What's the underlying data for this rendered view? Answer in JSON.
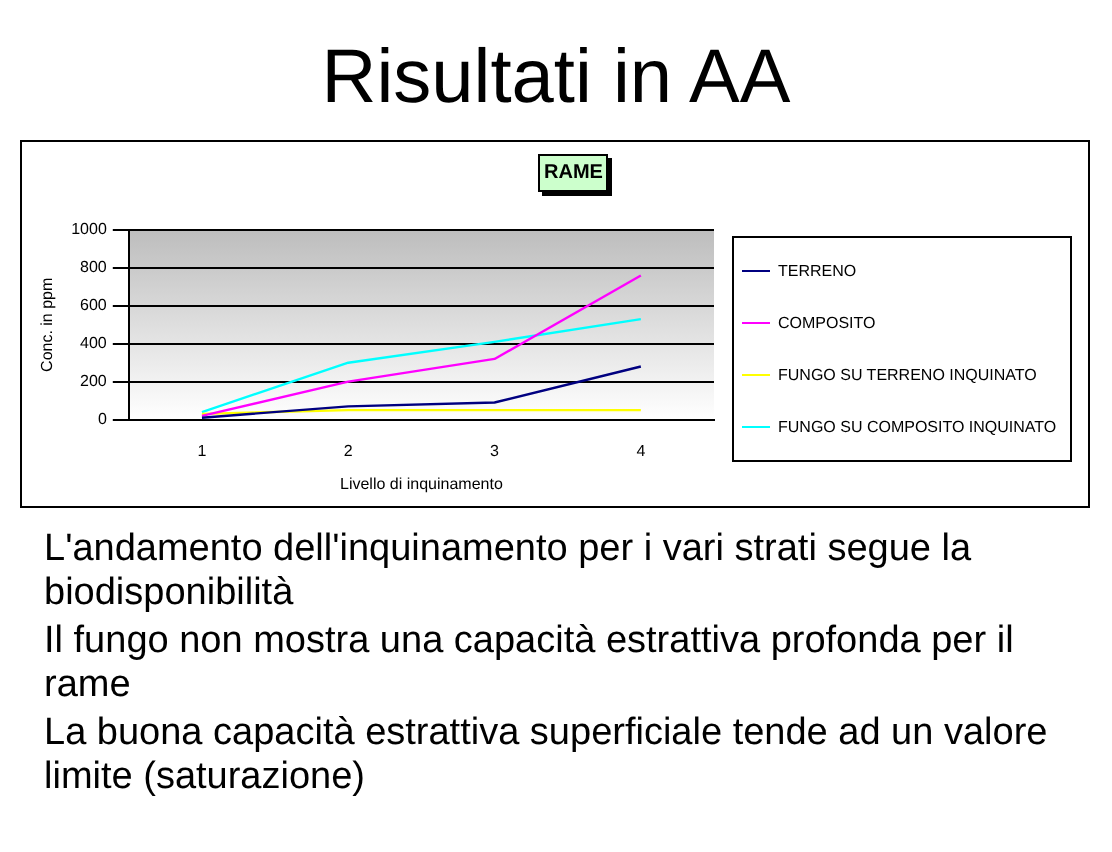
{
  "chart_data": {
    "type": "line",
    "title": "Risultati in AA",
    "subtitle": "RAME",
    "xlabel": "Livello di inquinamento",
    "ylabel": "Conc. in ppm",
    "categories": [
      "1",
      "2",
      "3",
      "4"
    ],
    "series": [
      {
        "name": "TERRENO",
        "color": "#000080",
        "values": [
          10,
          70,
          90,
          280
        ]
      },
      {
        "name": "COMPOSITO",
        "color": "#ff00ff",
        "values": [
          20,
          200,
          320,
          760
        ]
      },
      {
        "name": "FUNGO SU TERRENO INQUINATO",
        "color": "#ffff00",
        "values": [
          30,
          50,
          50,
          50
        ]
      },
      {
        "name": "FUNGO SU COMPOSITO INQUINATO",
        "color": "#00ffff",
        "values": [
          40,
          300,
          410,
          530
        ]
      }
    ],
    "ylim": [
      0,
      1000
    ],
    "yticks": [
      0,
      200,
      400,
      600,
      800,
      1000
    ],
    "grid": "y",
    "legend": "right",
    "marker": "none",
    "annotations": [
      "L'andamento dell'inquinamento per i vari strati segue la biodisponibilità",
      "Il fungo non mostra una capacità estrattiva profonda per il rame",
      "La buona capacità estrattiva superficiale tende ad un valore limite (saturazione)"
    ]
  }
}
